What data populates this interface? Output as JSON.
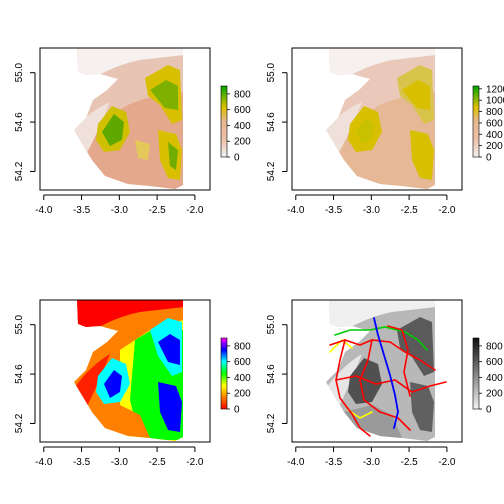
{
  "chart_data": [
    {
      "type": "heatmap",
      "palette": "terrain",
      "colors": [
        "#dfd0c8",
        "#e6b090",
        "#e0c000",
        "#4db000",
        "#00a600"
      ],
      "x_ticks": [
        "-4.0",
        "-3.5",
        "-3.0",
        "-2.5",
        "-2.0"
      ],
      "y_ticks": [
        "54.2",
        "54.6",
        "55.0"
      ],
      "x_tick_values": [
        -4.0,
        -3.5,
        -3.0,
        -2.5,
        -2.0
      ],
      "y_tick_values": [
        54.2,
        54.6,
        55.0
      ],
      "xlim": [
        -4.05,
        -1.8
      ],
      "ylim": [
        54.05,
        55.2
      ],
      "legend_ticks": [
        "0",
        "200",
        "400",
        "600",
        "800"
      ],
      "legend_range": [
        0,
        900
      ]
    },
    {
      "type": "heatmap",
      "palette": "terrain",
      "colors": [
        "#dfd0c8",
        "#e6b090",
        "#e0c000",
        "#4db000",
        "#00a600"
      ],
      "x_ticks": [
        "-4.0",
        "-3.5",
        "-3.0",
        "-2.5",
        "-2.0"
      ],
      "y_ticks": [
        "54.2",
        "54.6",
        "55.0"
      ],
      "x_tick_values": [
        -4.0,
        -3.5,
        -3.0,
        -2.5,
        -2.0
      ],
      "y_tick_values": [
        54.2,
        54.6,
        55.0
      ],
      "xlim": [
        -4.05,
        -1.8
      ],
      "ylim": [
        54.05,
        55.2
      ],
      "legend_ticks": [
        "0",
        "200",
        "400",
        "600",
        "800",
        "1000",
        "1200"
      ],
      "legend_range": [
        0,
        1250
      ]
    },
    {
      "type": "heatmap",
      "palette": "rainbow",
      "colors": [
        "#ff0000",
        "#ff8000",
        "#ffff00",
        "#00ff00",
        "#00ffff",
        "#0000ff",
        "#ff00ff"
      ],
      "x_ticks": [
        "-4.0",
        "-3.5",
        "-3.0",
        "-2.5",
        "-2.0"
      ],
      "y_ticks": [
        "54.2",
        "54.6",
        "55.0"
      ],
      "x_tick_values": [
        -4.0,
        -3.5,
        -3.0,
        -2.5,
        -2.0
      ],
      "y_tick_values": [
        54.2,
        54.6,
        55.0
      ],
      "xlim": [
        -4.05,
        -1.8
      ],
      "ylim": [
        54.05,
        55.2
      ],
      "legend_ticks": [
        "0",
        "200",
        "400",
        "600",
        "800"
      ],
      "legend_range": [
        0,
        900
      ]
    },
    {
      "type": "heatmap",
      "palette": "grey",
      "colors": [
        "#f4f4f4",
        "#909090",
        "#101010"
      ],
      "overlay_colors": [
        "#ff0000",
        "#0000ff",
        "#00cc00",
        "#ffff00"
      ],
      "x_ticks": [
        "-4.0",
        "-3.5",
        "-3.0",
        "-2.5",
        "-2.0"
      ],
      "y_ticks": [
        "54.2",
        "54.6",
        "55.0"
      ],
      "x_tick_values": [
        -4.0,
        -3.5,
        -3.0,
        -2.5,
        -2.0
      ],
      "y_tick_values": [
        54.2,
        54.6,
        55.0
      ],
      "xlim": [
        -4.05,
        -1.8
      ],
      "ylim": [
        54.05,
        55.2
      ],
      "legend_ticks": [
        "0",
        "200",
        "400",
        "600",
        "800"
      ],
      "legend_range": [
        0,
        900
      ]
    }
  ]
}
